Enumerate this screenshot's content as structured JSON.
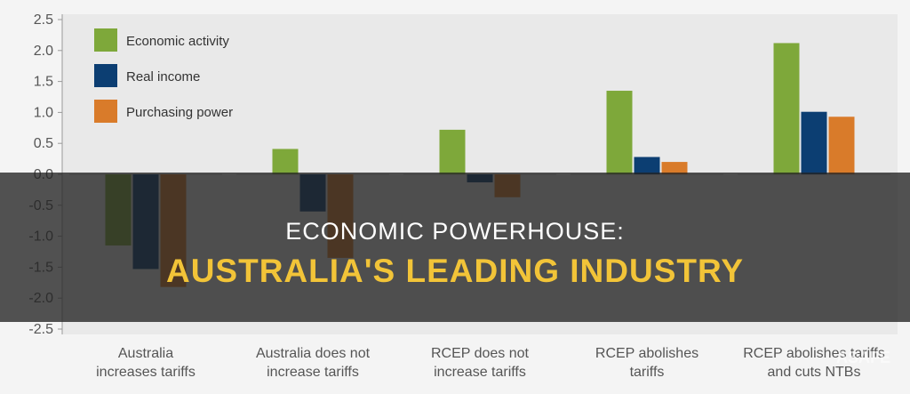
{
  "chart_data": {
    "type": "bar",
    "categories": [
      [
        "Australia",
        "increases tariffs"
      ],
      [
        "Australia does not",
        "increase tariffs"
      ],
      [
        "RCEP does not",
        "increase tariffs"
      ],
      [
        "RCEP abolishes",
        "tariffs"
      ],
      [
        "RCEP abolishes tariffs",
        "and cuts NTBs"
      ]
    ],
    "series": [
      {
        "name": "Economic activity",
        "color": "#7ea83a",
        "values": [
          -1.15,
          0.41,
          0.72,
          1.35,
          2.12
        ]
      },
      {
        "name": "Real income",
        "color": "#0c3e72",
        "values": [
          -1.53,
          -0.6,
          -0.13,
          0.28,
          1.01
        ]
      },
      {
        "name": "Purchasing power",
        "color": "#d97b2a",
        "values": [
          -1.82,
          -1.35,
          -0.37,
          0.2,
          0.93
        ]
      }
    ],
    "ylim": [
      -2.5,
      2.5
    ],
    "yticks": [
      "2.5",
      "2.0",
      "1.5",
      "1.0",
      "0.5",
      "0.0",
      "-0.5",
      "-1.0",
      "-1.5",
      "-2.0",
      "-2.5"
    ],
    "legend_position": "top-left",
    "grid": false
  },
  "overlay": {
    "subtitle": "ECONOMIC POWERHOUSE:",
    "title": "AUSTRALIA'S LEADING INDUSTRY"
  },
  "watermark": "ASAFE"
}
